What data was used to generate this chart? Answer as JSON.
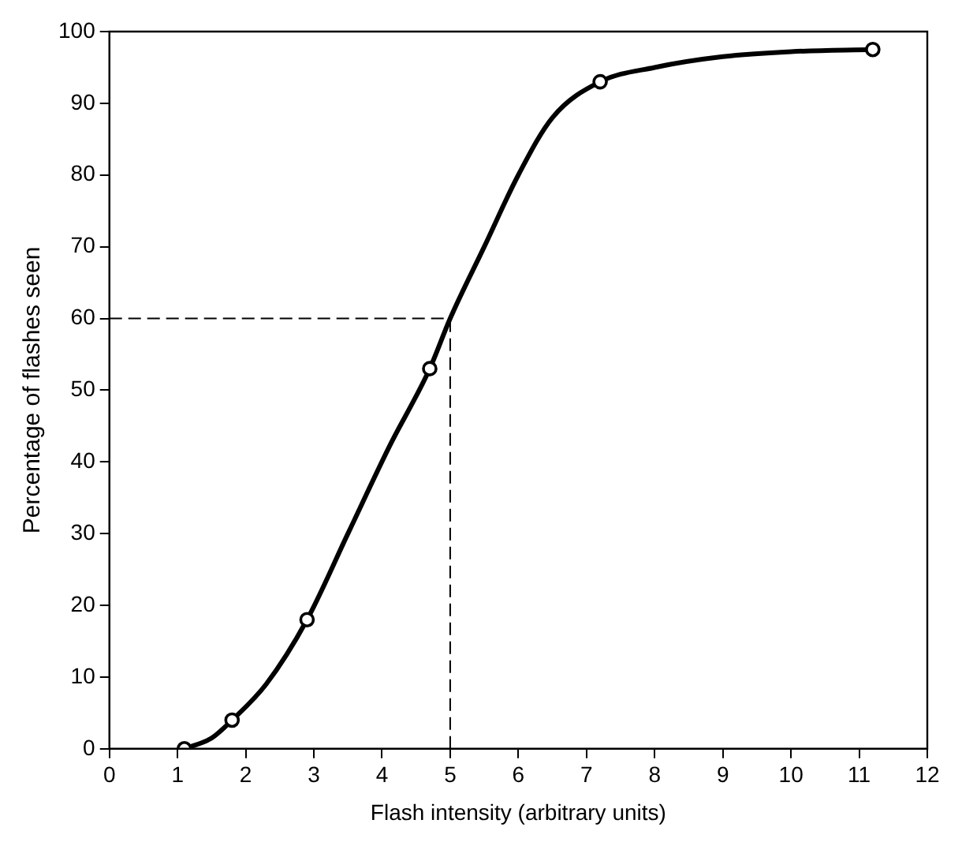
{
  "chart_data": {
    "type": "scatter",
    "xlabel": "Flash intensity (arbitrary units)",
    "ylabel": "Percentage of flashes seen",
    "xlim": [
      0,
      12
    ],
    "xticks": [
      0,
      1,
      2,
      3,
      4,
      5,
      6,
      7,
      8,
      9,
      10,
      11,
      12
    ],
    "ylim": [
      0,
      100
    ],
    "yticks": [
      0,
      10,
      20,
      30,
      40,
      50,
      60,
      70,
      80,
      90,
      100
    ],
    "grid": false,
    "series": [
      {
        "type": "line",
        "color": "#000000",
        "marker": "none",
        "x": [
          1.1,
          1.5,
          1.8,
          2.3,
          2.9,
          3.5,
          4.1,
          4.7,
          5,
          5.5,
          6,
          6.5,
          7.2,
          8,
          9,
          10,
          11.2
        ],
        "values": [
          0,
          1.5,
          4,
          9,
          18,
          30,
          42,
          53,
          60,
          70,
          80,
          88,
          93,
          95,
          96.5,
          97.2,
          97.5
        ]
      },
      {
        "type": "scatter",
        "color": "#000000",
        "marker": "circle",
        "x": [
          1.1,
          1.8,
          2.9,
          4.7,
          7.2,
          11.2
        ],
        "values": [
          0,
          4,
          18,
          53,
          93,
          97.5
        ]
      }
    ],
    "ref_lines": [
      {
        "axis": "y",
        "value": 60,
        "line_style": "dashed"
      },
      {
        "axis": "x",
        "value": 5,
        "line_style": "dashed"
      }
    ]
  }
}
